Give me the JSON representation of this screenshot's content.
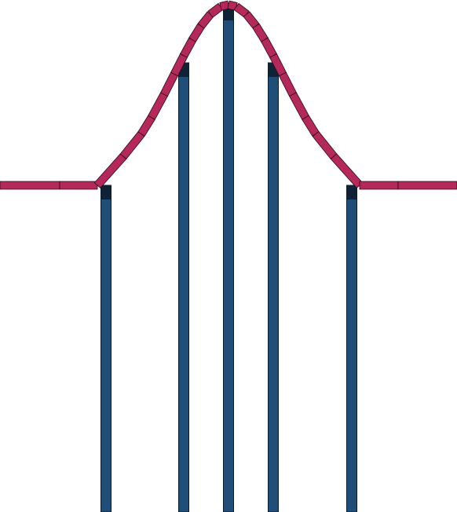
{
  "diagram": {
    "description_free": true,
    "colors": {
      "background": "#ffffff",
      "post_fill": "#1f4e79",
      "post_top_fill": "#0f2236",
      "post_stroke": "#0b1a2a",
      "segment_fill": "#b5285a",
      "segment_stroke": "#2a0b17"
    },
    "posts": [
      {
        "id": "post-1"
      },
      {
        "id": "post-2"
      },
      {
        "id": "post-3"
      },
      {
        "id": "post-4"
      },
      {
        "id": "post-5"
      }
    ],
    "curve": {
      "shape": "bell",
      "segment_count": 25
    }
  }
}
